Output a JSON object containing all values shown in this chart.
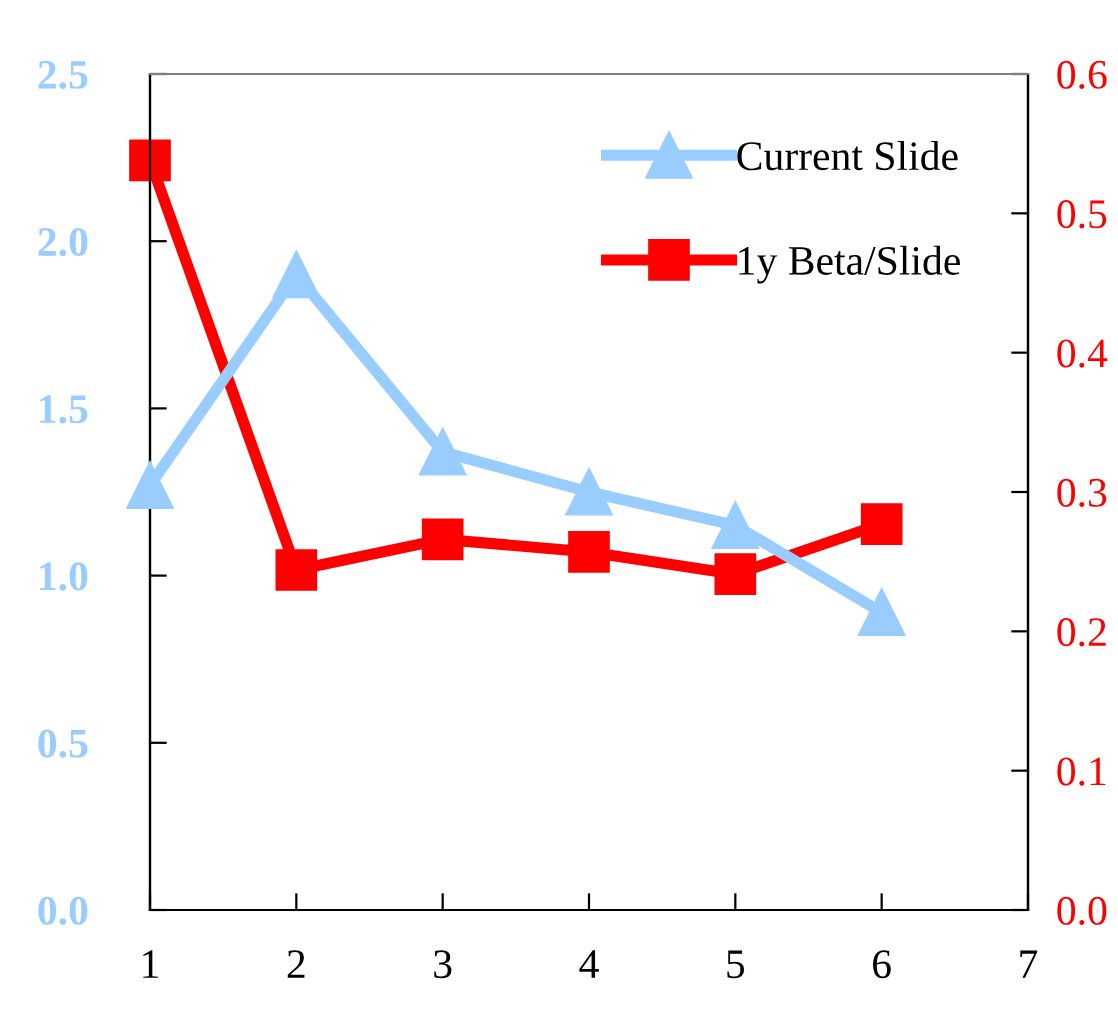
{
  "chart_data": {
    "type": "line",
    "x": [
      1,
      2,
      3,
      4,
      5,
      6
    ],
    "series": [
      {
        "name": "Current Slide",
        "color": "#99ccff",
        "values": [
          1.27,
          1.9,
          1.37,
          1.25,
          1.15,
          0.89
        ],
        "marker": "triangle"
      },
      {
        "name": "1y Beta/Slide",
        "color": "#ff0000",
        "values": [
          0.538,
          0.244,
          0.266,
          0.257,
          0.241,
          0.277
        ],
        "marker": "square",
        "axis": "y2"
      }
    ],
    "xlim": [
      1,
      7
    ],
    "xticks": [
      1,
      2,
      3,
      4,
      5,
      6,
      7
    ],
    "ylim": [
      0,
      2.5
    ],
    "yticks": [
      {
        "value": 0,
        "label": "0.0"
      },
      {
        "value": 0.5,
        "label": "0.5"
      },
      {
        "value": 1,
        "label": "1.0"
      },
      {
        "value": 1.5,
        "label": "1.5"
      },
      {
        "value": 2,
        "label": "2.0"
      },
      {
        "value": 2.5,
        "label": "2.5"
      }
    ],
    "y2lim": [
      0,
      0.6
    ],
    "y2ticks": [
      {
        "value": 0,
        "label": "0.0"
      },
      {
        "value": 0.1,
        "label": "0.1"
      },
      {
        "value": 0.2,
        "label": "0.2"
      },
      {
        "value": 0.3,
        "label": "0.3"
      },
      {
        "value": 0.4,
        "label": "0.4"
      },
      {
        "value": 0.5,
        "label": "0.5"
      },
      {
        "value": 0.6,
        "label": "0.6"
      }
    ],
    "grid": false,
    "legend": "top right",
    "line_style": "solid"
  }
}
